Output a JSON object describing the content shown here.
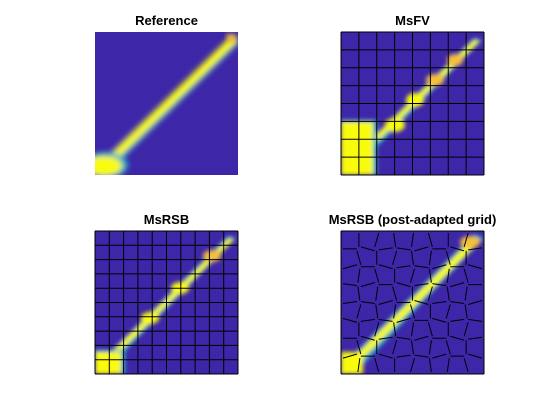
{
  "figure": {
    "background": "#ffffff"
  },
  "colormap": {
    "name": "parula",
    "low": "#3d26a8",
    "mid": "#1fb0c4",
    "high": "#f9fb0e",
    "accent": "#f5c03a"
  },
  "chart_data": [
    {
      "type": "heatmap",
      "title": "Reference",
      "field": "saturation",
      "grid_lines": false,
      "coarse_grid": null
    },
    {
      "type": "heatmap",
      "title": "MsFV",
      "field": "saturation",
      "grid_lines": true,
      "coarse_grid": {
        "kind": "cartesian",
        "cells": 8
      }
    },
    {
      "type": "heatmap",
      "title": "MsRSB",
      "field": "saturation",
      "grid_lines": true,
      "coarse_grid": {
        "kind": "cartesian",
        "cells": 10
      }
    },
    {
      "type": "heatmap",
      "title": "MsRSB (post-adapted grid)",
      "field": "saturation",
      "grid_lines": true,
      "coarse_grid": {
        "kind": "adapted",
        "cells": 8
      }
    }
  ]
}
